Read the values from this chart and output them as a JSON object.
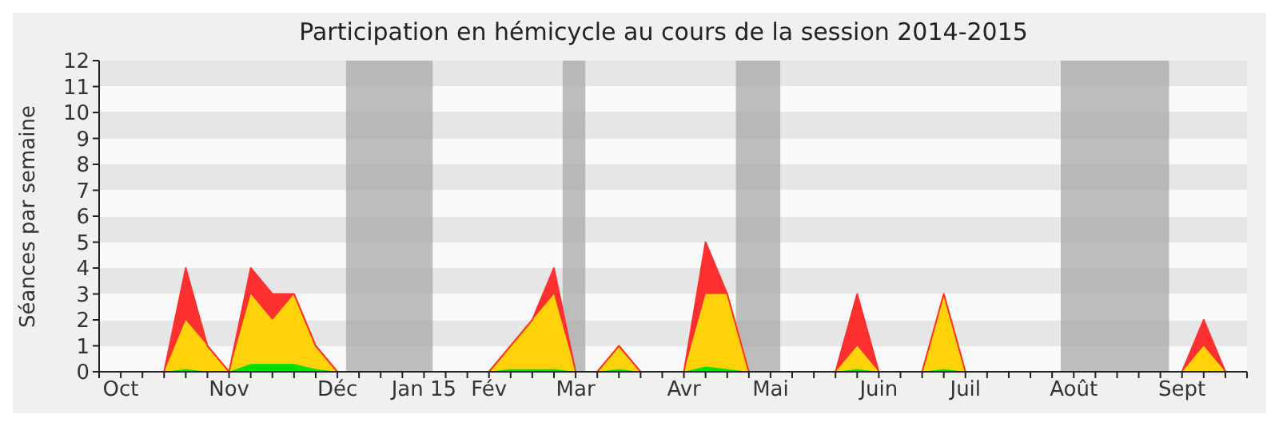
{
  "chart_data": {
    "type": "area",
    "stacked": true,
    "title": "Participation en hémicycle au cours de la session 2014-2015",
    "ylabel": "Séances par semaine",
    "categories": [
      null,
      "Oct",
      null,
      null,
      null,
      null,
      "Nov",
      null,
      null,
      null,
      null,
      "Déc",
      null,
      null,
      null,
      "Jan 15",
      null,
      null,
      "Fév",
      null,
      null,
      null,
      "Mar",
      null,
      null,
      null,
      null,
      "Avr",
      null,
      null,
      null,
      "Mai",
      null,
      null,
      null,
      null,
      "Juin",
      null,
      null,
      null,
      "Juil",
      null,
      null,
      null,
      null,
      "Août",
      null,
      null,
      null,
      null,
      "Sept",
      null,
      null
    ],
    "series": [
      {
        "color": "#00e000",
        "values": [
          0,
          0,
          0,
          0,
          0.1,
          0,
          0,
          0.3,
          0.3,
          0.3,
          0.1,
          0,
          0,
          0,
          0,
          0,
          0,
          0,
          0,
          0.1,
          0.1,
          0.1,
          0,
          0,
          0.1,
          0,
          0,
          0,
          0.2,
          0.1,
          0,
          0,
          0,
          0,
          0,
          0.1,
          0,
          0,
          0,
          0.1,
          0,
          0,
          0,
          0,
          0,
          0,
          0,
          0,
          0,
          0,
          0,
          0,
          0
        ]
      },
      {
        "color": "#ffd20a",
        "values": [
          0,
          0,
          0,
          0,
          1.9,
          1,
          0,
          2.7,
          1.7,
          2.7,
          0.9,
          0,
          0,
          0,
          0,
          0,
          0,
          0,
          0,
          0.9,
          1.9,
          2.9,
          0,
          0,
          0.9,
          0,
          0,
          0,
          2.8,
          2.9,
          0,
          0,
          0,
          0,
          0,
          0.9,
          0,
          0,
          0,
          2.9,
          0,
          0,
          0,
          0,
          0,
          0,
          0,
          0,
          0,
          0,
          0,
          1,
          0
        ]
      },
      {
        "color": "#ff3030",
        "values": [
          0,
          0,
          0,
          0,
          2,
          0,
          0,
          1,
          1,
          0,
          0,
          0,
          0,
          0,
          0,
          0,
          0,
          0,
          0,
          0,
          0,
          1,
          0,
          0,
          0,
          0,
          0,
          0,
          2,
          0,
          0,
          0,
          0,
          0,
          0,
          2,
          0,
          0,
          0,
          0,
          0,
          0,
          0,
          0,
          0,
          0,
          0,
          0,
          0,
          0,
          0,
          1,
          0
        ]
      }
    ],
    "ylim": [
      0,
      12
    ],
    "yticks": [
      0,
      1,
      2,
      3,
      4,
      5,
      6,
      7,
      8,
      9,
      10,
      11,
      12
    ],
    "legend": false
  }
}
